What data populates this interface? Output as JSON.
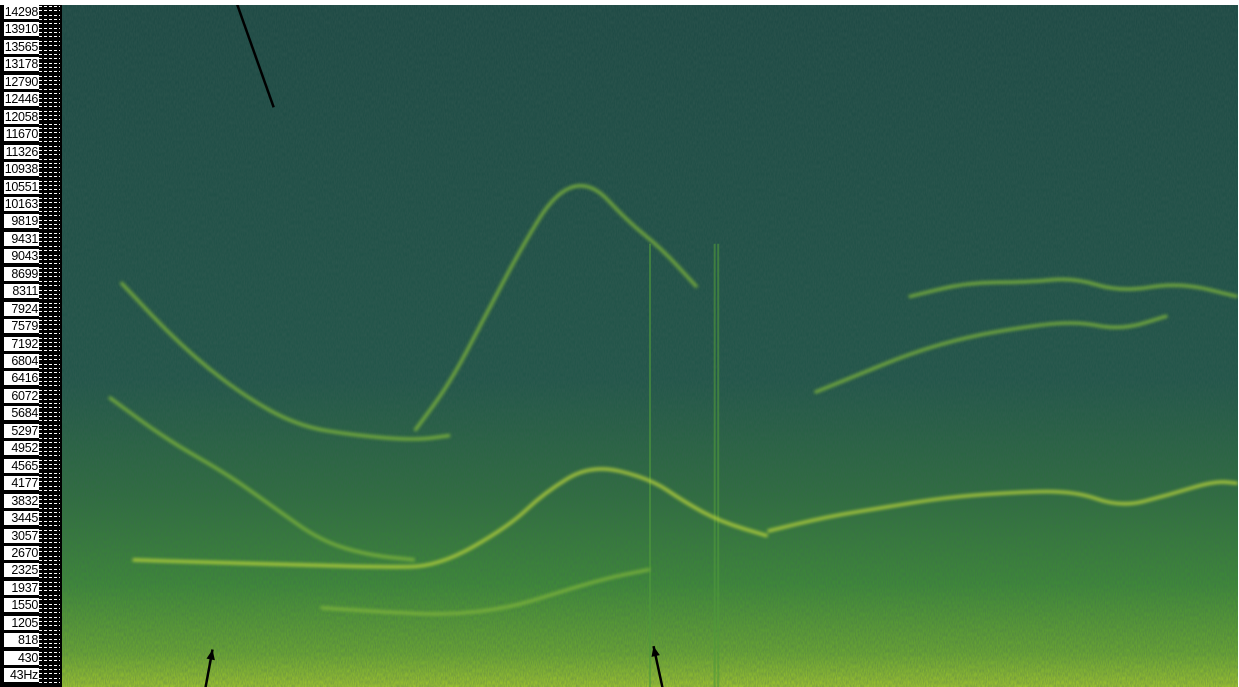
{
  "chart_data": {
    "type": "heatmap",
    "title": "",
    "xlabel": "",
    "ylabel": "",
    "y_tick_labels": [
      "14298",
      "13910",
      "13565",
      "13178",
      "12790",
      "12446",
      "12058",
      "11670",
      "11326",
      "10938",
      "10551",
      "10163",
      "9819",
      "9431",
      "9043",
      "8699",
      "8311",
      "7924",
      "7579",
      "7192",
      "6804",
      "6416",
      "6072",
      "5684",
      "5297",
      "4952",
      "4565",
      "4177",
      "3832",
      "3445",
      "3057",
      "2670",
      "2325",
      "1937",
      "1550",
      "1205",
      "818",
      "430",
      "43Hz"
    ],
    "ylim": [
      43,
      14298
    ],
    "colormap": {
      "low": "#1d4d43",
      "mid": "#3f8a35",
      "high": "#c4d52e"
    },
    "grid": false,
    "tracks": [
      {
        "id": "arc-lower",
        "points": [
          [
            0.06,
            2700
          ],
          [
            0.12,
            2650
          ],
          [
            0.2,
            2600
          ],
          [
            0.27,
            2550
          ],
          [
            0.32,
            2560
          ],
          [
            0.38,
            3400
          ],
          [
            0.41,
            4100
          ],
          [
            0.45,
            4700
          ],
          [
            0.5,
            4400
          ],
          [
            0.53,
            3900
          ],
          [
            0.56,
            3500
          ],
          [
            0.6,
            3200
          ]
        ]
      },
      {
        "id": "arc-upper",
        "points": [
          [
            0.3,
            5400
          ],
          [
            0.33,
            6400
          ],
          [
            0.36,
            7800
          ],
          [
            0.39,
            9200
          ],
          [
            0.42,
            10400
          ],
          [
            0.45,
            10600
          ],
          [
            0.48,
            9800
          ],
          [
            0.51,
            9200
          ],
          [
            0.54,
            8400
          ]
        ]
      },
      {
        "id": "descend-1",
        "points": [
          [
            0.05,
            8500
          ],
          [
            0.1,
            7200
          ],
          [
            0.15,
            6200
          ],
          [
            0.2,
            5500
          ],
          [
            0.25,
            5300
          ],
          [
            0.3,
            5200
          ],
          [
            0.33,
            5300
          ]
        ]
      },
      {
        "id": "descend-2",
        "points": [
          [
            0.04,
            6100
          ],
          [
            0.09,
            5200
          ],
          [
            0.14,
            4500
          ],
          [
            0.18,
            3800
          ],
          [
            0.22,
            3100
          ],
          [
            0.26,
            2800
          ],
          [
            0.3,
            2700
          ]
        ]
      },
      {
        "id": "rise-mid",
        "points": [
          [
            0.22,
            1700
          ],
          [
            0.28,
            1600
          ],
          [
            0.33,
            1550
          ],
          [
            0.38,
            1700
          ],
          [
            0.42,
            2000
          ],
          [
            0.46,
            2300
          ],
          [
            0.5,
            2500
          ]
        ]
      },
      {
        "id": "right-band",
        "points": [
          [
            0.6,
            3300
          ],
          [
            0.65,
            3600
          ],
          [
            0.7,
            3800
          ],
          [
            0.75,
            4000
          ],
          [
            0.8,
            4100
          ],
          [
            0.86,
            4150
          ],
          [
            0.9,
            3800
          ],
          [
            0.94,
            4050
          ],
          [
            0.98,
            4350
          ],
          [
            1.0,
            4300
          ]
        ]
      },
      {
        "id": "right-high",
        "points": [
          [
            0.72,
            8200
          ],
          [
            0.77,
            8500
          ],
          [
            0.82,
            8500
          ],
          [
            0.86,
            8600
          ],
          [
            0.9,
            8300
          ],
          [
            0.95,
            8500
          ],
          [
            1.0,
            8200
          ]
        ]
      },
      {
        "id": "right-mid",
        "points": [
          [
            0.64,
            6200
          ],
          [
            0.68,
            6600
          ],
          [
            0.72,
            7000
          ],
          [
            0.76,
            7300
          ],
          [
            0.8,
            7500
          ],
          [
            0.86,
            7700
          ],
          [
            0.9,
            7500
          ],
          [
            0.94,
            7800
          ]
        ]
      }
    ],
    "vertical_lines": [
      0.555,
      0.558,
      0.5
    ],
    "callout_arrows": [
      {
        "id": "arrow-top",
        "from": [
          0.145,
          -0.02
        ],
        "to": [
          0.18,
          0.15
        ]
      },
      {
        "id": "arrow-bottom-left",
        "from": [
          0.12,
          1.02
        ],
        "to": [
          0.128,
          0.945
        ]
      },
      {
        "id": "arrow-bottom-mid",
        "from": [
          0.513,
          1.02
        ],
        "to": [
          0.503,
          0.94
        ]
      }
    ]
  }
}
